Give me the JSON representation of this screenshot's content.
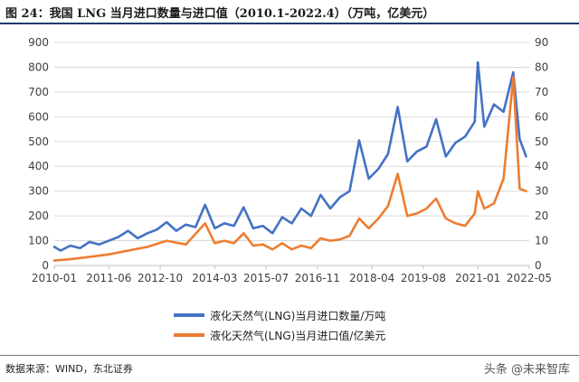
{
  "header": {
    "title": "图 24：我国 LNG 当月进口数量与进口值（2010.1-2022.4）（万吨，亿美元）"
  },
  "footer": {
    "source": "数据来源：WIND，东北证券",
    "watermark": "头条 @未来智库"
  },
  "colors": {
    "series1": "#4472C4",
    "series2": "#ED7D31",
    "grid": "#d9d9d9",
    "axis": "#bfbfbf"
  },
  "chart_data": {
    "type": "line",
    "title": "",
    "x_tick_labels": [
      "2010-01",
      "2011-06",
      "2012-10",
      "2014-03",
      "2015-07",
      "2016-11",
      "2018-04",
      "2019-08",
      "2021-01",
      "2022-05"
    ],
    "y_left": {
      "lim": [
        0,
        900
      ],
      "ticks": [
        "0",
        "100",
        "200",
        "300",
        "400",
        "500",
        "600",
        "700",
        "800",
        "900"
      ]
    },
    "y_right": {
      "lim": [
        0,
        90
      ],
      "ticks": [
        "0",
        "10",
        "20",
        "30",
        "40",
        "50",
        "60",
        "70",
        "80",
        "90"
      ]
    },
    "x_range": [
      "2010-01",
      "2022-05"
    ],
    "grid": true,
    "legend_position": "bottom",
    "series": [
      {
        "name": "液化天然气(LNG)当月进口数量/万吨",
        "axis": "left",
        "color": "#4472C4",
        "points": [
          [
            "2010-01",
            75
          ],
          [
            "2010-03",
            60
          ],
          [
            "2010-06",
            80
          ],
          [
            "2010-09",
            70
          ],
          [
            "2010-12",
            95
          ],
          [
            "2011-03",
            85
          ],
          [
            "2011-06",
            100
          ],
          [
            "2011-09",
            115
          ],
          [
            "2011-12",
            140
          ],
          [
            "2012-03",
            110
          ],
          [
            "2012-06",
            130
          ],
          [
            "2012-09",
            145
          ],
          [
            "2012-12",
            175
          ],
          [
            "2013-03",
            140
          ],
          [
            "2013-06",
            165
          ],
          [
            "2013-09",
            155
          ],
          [
            "2013-12",
            245
          ],
          [
            "2014-03",
            150
          ],
          [
            "2014-06",
            170
          ],
          [
            "2014-09",
            160
          ],
          [
            "2014-12",
            235
          ],
          [
            "2015-03",
            150
          ],
          [
            "2015-06",
            160
          ],
          [
            "2015-09",
            130
          ],
          [
            "2015-12",
            195
          ],
          [
            "2016-03",
            170
          ],
          [
            "2016-06",
            230
          ],
          [
            "2016-09",
            200
          ],
          [
            "2016-12",
            285
          ],
          [
            "2017-03",
            230
          ],
          [
            "2017-06",
            275
          ],
          [
            "2017-09",
            300
          ],
          [
            "2017-12",
            505
          ],
          [
            "2018-03",
            350
          ],
          [
            "2018-06",
            390
          ],
          [
            "2018-09",
            450
          ],
          [
            "2018-12",
            640
          ],
          [
            "2019-03",
            420
          ],
          [
            "2019-06",
            460
          ],
          [
            "2019-09",
            480
          ],
          [
            "2019-12",
            590
          ],
          [
            "2020-03",
            440
          ],
          [
            "2020-06",
            495
          ],
          [
            "2020-09",
            520
          ],
          [
            "2020-12",
            580
          ],
          [
            "2021-01",
            820
          ],
          [
            "2021-03",
            560
          ],
          [
            "2021-06",
            650
          ],
          [
            "2021-09",
            620
          ],
          [
            "2021-12",
            780
          ],
          [
            "2022-02",
            510
          ],
          [
            "2022-04",
            440
          ]
        ]
      },
      {
        "name": "液化天然气(LNG)当月进口值/亿美元",
        "axis": "right",
        "color": "#ED7D31",
        "points": [
          [
            "2010-01",
            2
          ],
          [
            "2010-06",
            2.5
          ],
          [
            "2010-12",
            3.5
          ],
          [
            "2011-06",
            4.5
          ],
          [
            "2011-12",
            6
          ],
          [
            "2012-06",
            7.5
          ],
          [
            "2012-12",
            10
          ],
          [
            "2013-06",
            8.5
          ],
          [
            "2013-12",
            17
          ],
          [
            "2014-03",
            9
          ],
          [
            "2014-06",
            10
          ],
          [
            "2014-09",
            9
          ],
          [
            "2014-12",
            13
          ],
          [
            "2015-03",
            8
          ],
          [
            "2015-06",
            8.5
          ],
          [
            "2015-09",
            6.5
          ],
          [
            "2015-12",
            9
          ],
          [
            "2016-03",
            6.5
          ],
          [
            "2016-06",
            8
          ],
          [
            "2016-09",
            7
          ],
          [
            "2016-12",
            11
          ],
          [
            "2017-03",
            10
          ],
          [
            "2017-06",
            10.5
          ],
          [
            "2017-09",
            12
          ],
          [
            "2017-12",
            19
          ],
          [
            "2018-03",
            15
          ],
          [
            "2018-06",
            19
          ],
          [
            "2018-09",
            24
          ],
          [
            "2018-12",
            37
          ],
          [
            "2019-03",
            20
          ],
          [
            "2019-06",
            21
          ],
          [
            "2019-09",
            23
          ],
          [
            "2019-12",
            27
          ],
          [
            "2020-03",
            19
          ],
          [
            "2020-06",
            17
          ],
          [
            "2020-09",
            16
          ],
          [
            "2020-12",
            21
          ],
          [
            "2021-01",
            30
          ],
          [
            "2021-03",
            23
          ],
          [
            "2021-06",
            25
          ],
          [
            "2021-09",
            35
          ],
          [
            "2021-12",
            76
          ],
          [
            "2022-02",
            31
          ],
          [
            "2022-04",
            30
          ]
        ]
      }
    ]
  }
}
